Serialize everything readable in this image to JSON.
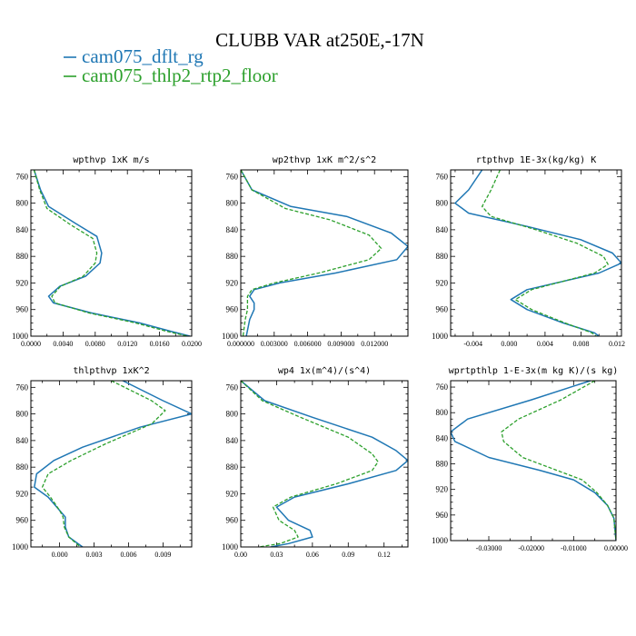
{
  "figure": {
    "title": "CLUBB VAR at250E,-17N",
    "legend": [
      {
        "label": "cam075_dflt_rg",
        "color": "#1f77b4",
        "dash": "solid"
      },
      {
        "label": "cam075_thlp2_rtp2_floor",
        "color": "#2ca02c",
        "dash": "dashed"
      }
    ]
  },
  "chart_data": [
    {
      "type": "line",
      "title": "wpthvp  1xK m/s",
      "xlim": [
        0.0,
        0.02
      ],
      "ylim": [
        1000,
        750
      ],
      "xticks": [
        0.0,
        0.004,
        0.008,
        0.012,
        0.016,
        0.02
      ],
      "xtick_labels": [
        "0.0000",
        "0.0040",
        "0.0080",
        "0.0120",
        "0.0160",
        "0.0200"
      ],
      "yticks": [
        760,
        800,
        840,
        880,
        920,
        960,
        1000
      ],
      "series": [
        {
          "name": "cam075_dflt_rg",
          "points": [
            [
              0.0004,
              750
            ],
            [
              0.0012,
              780
            ],
            [
              0.0022,
              805
            ],
            [
              0.0055,
              830
            ],
            [
              0.0082,
              850
            ],
            [
              0.0088,
              875
            ],
            [
              0.0086,
              890
            ],
            [
              0.0068,
              910
            ],
            [
              0.0036,
              925
            ],
            [
              0.0022,
              940
            ],
            [
              0.0028,
              950
            ],
            [
              0.0075,
              965
            ],
            [
              0.0135,
              980
            ],
            [
              0.0175,
              993
            ],
            [
              0.0198,
              1000
            ]
          ]
        },
        {
          "name": "cam075_thlp2_rtp2_floor",
          "points": [
            [
              0.0004,
              750
            ],
            [
              0.0011,
              780
            ],
            [
              0.002,
              808
            ],
            [
              0.005,
              833
            ],
            [
              0.0077,
              853
            ],
            [
              0.0082,
              875
            ],
            [
              0.008,
              890
            ],
            [
              0.0065,
              910
            ],
            [
              0.0037,
              925
            ],
            [
              0.0026,
              940
            ],
            [
              0.003,
              950
            ],
            [
              0.0072,
              965
            ],
            [
              0.013,
              980
            ],
            [
              0.017,
              993
            ],
            [
              0.0195,
              1000
            ]
          ]
        }
      ]
    },
    {
      "type": "line",
      "title": "wp2thvp  1xK m^2/s^2",
      "xlim": [
        0.0,
        0.015
      ],
      "ylim": [
        1000,
        750
      ],
      "xticks": [
        0.0,
        0.003,
        0.006,
        0.009,
        0.012
      ],
      "xtick_labels": [
        "0.000000",
        "0.003000",
        "0.006000",
        "0.009000",
        "0.012000"
      ],
      "yticks": [
        760,
        800,
        840,
        880,
        920,
        960,
        1000
      ],
      "series": [
        {
          "name": "cam075_dflt_rg",
          "points": [
            [
              0.0,
              750
            ],
            [
              0.001,
              780
            ],
            [
              0.0045,
              805
            ],
            [
              0.0095,
              820
            ],
            [
              0.0135,
              845
            ],
            [
              0.015,
              865
            ],
            [
              0.014,
              885
            ],
            [
              0.0085,
              905
            ],
            [
              0.0035,
              920
            ],
            [
              0.0012,
              930
            ],
            [
              0.0008,
              940
            ],
            [
              0.0012,
              950
            ],
            [
              0.0012,
              960
            ],
            [
              0.0008,
              975
            ],
            [
              0.0005,
              1000
            ]
          ]
        },
        {
          "name": "cam075_thlp2_rtp2_floor",
          "points": [
            [
              0.0,
              750
            ],
            [
              0.001,
              780
            ],
            [
              0.004,
              808
            ],
            [
              0.008,
              825
            ],
            [
              0.0115,
              848
            ],
            [
              0.0126,
              868
            ],
            [
              0.0115,
              885
            ],
            [
              0.007,
              905
            ],
            [
              0.003,
              920
            ],
            [
              0.001,
              930
            ],
            [
              0.0006,
              940
            ],
            [
              0.0006,
              950
            ],
            [
              0.0006,
              960
            ],
            [
              0.0004,
              975
            ],
            [
              0.0002,
              1000
            ]
          ]
        }
      ]
    },
    {
      "type": "line",
      "title": "rtpthvp  1E-3x(kg/kg) K",
      "xlim": [
        -0.0065,
        0.0125
      ],
      "ylim": [
        1000,
        750
      ],
      "xticks": [
        -0.004,
        0.0,
        0.004,
        0.008,
        0.012
      ],
      "xtick_labels": [
        "-0.004",
        "0.000",
        "0.004",
        "0.008",
        "0.012"
      ],
      "yticks": [
        760,
        800,
        840,
        880,
        920,
        960,
        1000
      ],
      "series": [
        {
          "name": "cam075_dflt_rg",
          "points": [
            [
              -0.003,
              750
            ],
            [
              -0.0045,
              780
            ],
            [
              -0.006,
              800
            ],
            [
              -0.0045,
              815
            ],
            [
              0.002,
              835
            ],
            [
              0.008,
              855
            ],
            [
              0.0115,
              875
            ],
            [
              0.0125,
              890
            ],
            [
              0.01,
              905
            ],
            [
              0.002,
              930
            ],
            [
              0.0002,
              945
            ],
            [
              0.002,
              960
            ],
            [
              0.006,
              980
            ],
            [
              0.0095,
              995
            ],
            [
              0.01,
              1000
            ]
          ]
        },
        {
          "name": "cam075_thlp2_rtp2_floor",
          "points": [
            [
              -0.001,
              750
            ],
            [
              -0.002,
              780
            ],
            [
              -0.003,
              805
            ],
            [
              -0.002,
              820
            ],
            [
              0.003,
              840
            ],
            [
              0.0075,
              860
            ],
            [
              0.0105,
              880
            ],
            [
              0.011,
              892
            ],
            [
              0.0095,
              905
            ],
            [
              0.0025,
              930
            ],
            [
              0.0007,
              945
            ],
            [
              0.0025,
              960
            ],
            [
              0.0062,
              980
            ],
            [
              0.0092,
              995
            ],
            [
              0.0097,
              1000
            ]
          ]
        }
      ]
    },
    {
      "type": "line",
      "title": "thlpthvp  1xK^2",
      "xlim": [
        -0.0025,
        0.0115
      ],
      "ylim": [
        1000,
        750
      ],
      "xticks": [
        0.0,
        0.003,
        0.006,
        0.009
      ],
      "xtick_labels": [
        "0.000",
        "0.003",
        "0.006",
        "0.009"
      ],
      "yticks": [
        760,
        800,
        840,
        880,
        920,
        960,
        1000
      ],
      "series": [
        {
          "name": "cam075_dflt_rg",
          "points": [
            [
              0.0055,
              750
            ],
            [
              0.009,
              780
            ],
            [
              0.0115,
              800
            ],
            [
              0.007,
              820
            ],
            [
              0.002,
              850
            ],
            [
              -0.0005,
              870
            ],
            [
              -0.002,
              890
            ],
            [
              -0.0022,
              910
            ],
            [
              -0.001,
              925
            ],
            [
              0.0,
              945
            ],
            [
              0.0005,
              955
            ],
            [
              0.0005,
              970
            ],
            [
              0.0008,
              985
            ],
            [
              0.002,
              1000
            ]
          ]
        },
        {
          "name": "cam075_thlp2_rtp2_floor",
          "points": [
            [
              0.0045,
              750
            ],
            [
              0.008,
              780
            ],
            [
              0.0092,
              795
            ],
            [
              0.008,
              815
            ],
            [
              0.004,
              845
            ],
            [
              0.001,
              870
            ],
            [
              -0.001,
              890
            ],
            [
              -0.0015,
              910
            ],
            [
              -0.0008,
              925
            ],
            [
              0.0,
              945
            ],
            [
              0.0003,
              955
            ],
            [
              0.0004,
              970
            ],
            [
              0.0008,
              985
            ],
            [
              0.0018,
              1000
            ]
          ]
        }
      ]
    },
    {
      "type": "line",
      "title": "wp4  1x(m^4)/(s^4)",
      "xlim": [
        0.0,
        0.14
      ],
      "ylim": [
        1000,
        750
      ],
      "xticks": [
        0.0,
        0.03,
        0.06,
        0.09,
        0.12
      ],
      "xtick_labels": [
        "0.00",
        "0.03",
        "0.06",
        "0.09",
        "0.12"
      ],
      "yticks": [
        760,
        800,
        840,
        880,
        920,
        960,
        1000
      ],
      "series": [
        {
          "name": "cam075_dflt_rg",
          "points": [
            [
              0.0,
              750
            ],
            [
              0.02,
              780
            ],
            [
              0.06,
              805
            ],
            [
              0.11,
              835
            ],
            [
              0.13,
              855
            ],
            [
              0.14,
              870
            ],
            [
              0.13,
              885
            ],
            [
              0.09,
              905
            ],
            [
              0.045,
              925
            ],
            [
              0.03,
              940
            ],
            [
              0.04,
              960
            ],
            [
              0.058,
              975
            ],
            [
              0.06,
              985
            ],
            [
              0.04,
              995
            ],
            [
              0.025,
              1000
            ]
          ]
        },
        {
          "name": "cam075_thlp2_rtp2_floor",
          "points": [
            [
              0.0,
              750
            ],
            [
              0.018,
              780
            ],
            [
              0.05,
              805
            ],
            [
              0.09,
              835
            ],
            [
              0.11,
              860
            ],
            [
              0.115,
              872
            ],
            [
              0.11,
              885
            ],
            [
              0.08,
              905
            ],
            [
              0.042,
              925
            ],
            [
              0.027,
              940
            ],
            [
              0.032,
              960
            ],
            [
              0.045,
              975
            ],
            [
              0.048,
              985
            ],
            [
              0.033,
              995
            ],
            [
              0.015,
              1000
            ]
          ]
        }
      ]
    },
    {
      "type": "line",
      "title": "wprtpthlp  1-E-3x(m kg K)/(s kg)",
      "xlim": [
        -0.039,
        0.0
      ],
      "ylim": [
        1000,
        750
      ],
      "xticks": [
        -0.03,
        -0.02,
        -0.01,
        0.0
      ],
      "xtick_labels": [
        "-0.03000",
        "-0.02000",
        "-0.01000",
        "0.00000"
      ],
      "yticks": [
        760,
        800,
        840,
        880,
        920,
        960,
        1000
      ],
      "series": [
        {
          "name": "cam075_dflt_rg",
          "points": [
            [
              -0.006,
              750
            ],
            [
              -0.02,
              780
            ],
            [
              -0.035,
              810
            ],
            [
              -0.039,
              830
            ],
            [
              -0.038,
              845
            ],
            [
              -0.03,
              870
            ],
            [
              -0.018,
              890
            ],
            [
              -0.01,
              905
            ],
            [
              -0.005,
              925
            ],
            [
              -0.002,
              945
            ],
            [
              -0.0005,
              965
            ],
            [
              0.0,
              1000
            ]
          ]
        },
        {
          "name": "cam075_thlp2_rtp2_floor",
          "points": [
            [
              -0.005,
              750
            ],
            [
              -0.013,
              780
            ],
            [
              -0.023,
              810
            ],
            [
              -0.027,
              830
            ],
            [
              -0.0265,
              845
            ],
            [
              -0.022,
              870
            ],
            [
              -0.014,
              890
            ],
            [
              -0.008,
              905
            ],
            [
              -0.0045,
              925
            ],
            [
              -0.002,
              945
            ],
            [
              -0.0005,
              965
            ],
            [
              0.0,
              1000
            ]
          ]
        }
      ]
    }
  ]
}
